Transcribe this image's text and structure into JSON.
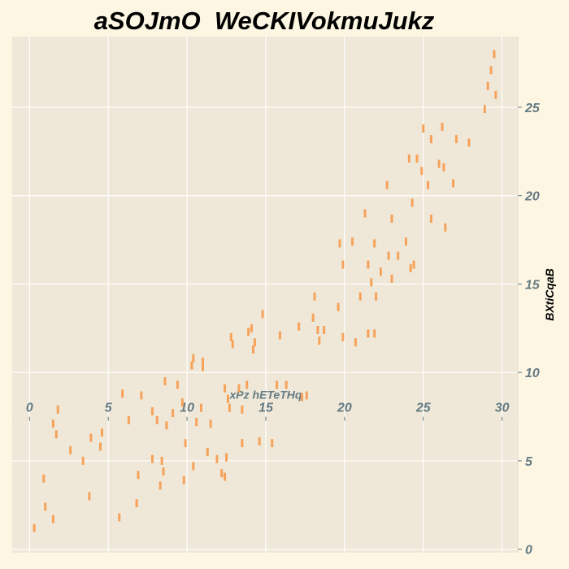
{
  "chart_data": {
    "type": "scatter",
    "title": "aSOJmO  WeCKIVokmuJukz",
    "xlabel": "xPz hETeTHq",
    "ylabel": "BXtiCqaB",
    "xlim": [
      -1.1,
      31.0
    ],
    "ylim": [
      -0.2,
      29.0
    ],
    "xticks": [
      0,
      5,
      10,
      15,
      20,
      25,
      30
    ],
    "yticks": [
      0,
      5,
      10,
      15,
      20,
      25
    ],
    "x_axis_position": "at y = 7.4 (inside plot)",
    "y_axis_position": "right",
    "grid": true,
    "marker": "vertical-dash",
    "colors": {
      "page_background": "#fdf6e3",
      "plot_background": "#efe8d8",
      "grid": "#ffffff",
      "marker": "#f6a25a",
      "tick_labels": "#657b83"
    },
    "points": [
      [
        0.3,
        1.2
      ],
      [
        0.9,
        4.0
      ],
      [
        1.0,
        2.4
      ],
      [
        1.5,
        7.1
      ],
      [
        1.5,
        1.7
      ],
      [
        1.7,
        6.5
      ],
      [
        1.8,
        7.9
      ],
      [
        2.6,
        5.6
      ],
      [
        3.4,
        5.0
      ],
      [
        3.8,
        3.0
      ],
      [
        3.9,
        6.3
      ],
      [
        4.5,
        5.8
      ],
      [
        4.6,
        6.6
      ],
      [
        5.7,
        1.8
      ],
      [
        5.9,
        8.8
      ],
      [
        6.3,
        7.3
      ],
      [
        6.8,
        2.6
      ],
      [
        6.9,
        4.2
      ],
      [
        7.1,
        8.7
      ],
      [
        7.8,
        5.1
      ],
      [
        7.8,
        7.8
      ],
      [
        8.1,
        7.3
      ],
      [
        8.3,
        3.6
      ],
      [
        8.4,
        5.0
      ],
      [
        8.5,
        4.4
      ],
      [
        8.6,
        9.5
      ],
      [
        8.7,
        7.0
      ],
      [
        9.1,
        7.7
      ],
      [
        9.4,
        9.3
      ],
      [
        9.7,
        8.3
      ],
      [
        9.8,
        3.9
      ],
      [
        9.9,
        6.0
      ],
      [
        10.3,
        10.4
      ],
      [
        10.4,
        10.8
      ],
      [
        10.4,
        4.7
      ],
      [
        10.6,
        7.2
      ],
      [
        10.9,
        8.0
      ],
      [
        11.0,
        10.3
      ],
      [
        11.0,
        10.6
      ],
      [
        11.3,
        5.5
      ],
      [
        11.5,
        7.1
      ],
      [
        11.9,
        5.1
      ],
      [
        12.2,
        4.3
      ],
      [
        12.4,
        9.1
      ],
      [
        12.4,
        4.1
      ],
      [
        12.5,
        5.2
      ],
      [
        12.6,
        8.5
      ],
      [
        12.7,
        8.0
      ],
      [
        12.8,
        12.0
      ],
      [
        12.9,
        11.6
      ],
      [
        13.3,
        9.1
      ],
      [
        13.5,
        7.9
      ],
      [
        13.5,
        6.0
      ],
      [
        13.8,
        9.3
      ],
      [
        13.9,
        12.3
      ],
      [
        14.1,
        12.5
      ],
      [
        14.2,
        11.3
      ],
      [
        14.3,
        11.7
      ],
      [
        14.6,
        6.1
      ],
      [
        14.8,
        13.3
      ],
      [
        15.4,
        6.0
      ],
      [
        15.7,
        9.3
      ],
      [
        15.9,
        12.1
      ],
      [
        16.3,
        9.3
      ],
      [
        17.1,
        12.6
      ],
      [
        17.3,
        8.6
      ],
      [
        17.6,
        8.7
      ],
      [
        18.0,
        13.1
      ],
      [
        18.1,
        14.3
      ],
      [
        18.3,
        12.4
      ],
      [
        18.4,
        11.8
      ],
      [
        18.7,
        12.4
      ],
      [
        19.6,
        13.7
      ],
      [
        19.7,
        17.3
      ],
      [
        19.9,
        16.1
      ],
      [
        19.9,
        12.0
      ],
      [
        20.5,
        17.4
      ],
      [
        20.7,
        11.7
      ],
      [
        21.0,
        14.3
      ],
      [
        21.3,
        19.0
      ],
      [
        21.5,
        16.1
      ],
      [
        21.5,
        12.2
      ],
      [
        21.7,
        15.1
      ],
      [
        21.9,
        17.3
      ],
      [
        21.9,
        12.2
      ],
      [
        22.0,
        14.3
      ],
      [
        22.3,
        15.7
      ],
      [
        22.7,
        20.6
      ],
      [
        22.8,
        16.6
      ],
      [
        23.0,
        18.7
      ],
      [
        23.0,
        15.3
      ],
      [
        23.4,
        16.6
      ],
      [
        23.9,
        17.4
      ],
      [
        24.1,
        22.1
      ],
      [
        24.2,
        15.9
      ],
      [
        24.3,
        19.6
      ],
      [
        24.4,
        16.1
      ],
      [
        24.6,
        22.1
      ],
      [
        24.9,
        21.4
      ],
      [
        25.0,
        23.8
      ],
      [
        25.3,
        20.6
      ],
      [
        25.5,
        23.2
      ],
      [
        25.5,
        18.7
      ],
      [
        26.0,
        21.8
      ],
      [
        26.2,
        23.9
      ],
      [
        26.3,
        21.6
      ],
      [
        26.4,
        18.2
      ],
      [
        26.9,
        20.7
      ],
      [
        27.1,
        23.2
      ],
      [
        27.9,
        23.0
      ],
      [
        28.9,
        24.9
      ],
      [
        29.1,
        26.2
      ],
      [
        29.3,
        27.1
      ],
      [
        29.5,
        28.0
      ],
      [
        29.6,
        25.7
      ]
    ]
  }
}
